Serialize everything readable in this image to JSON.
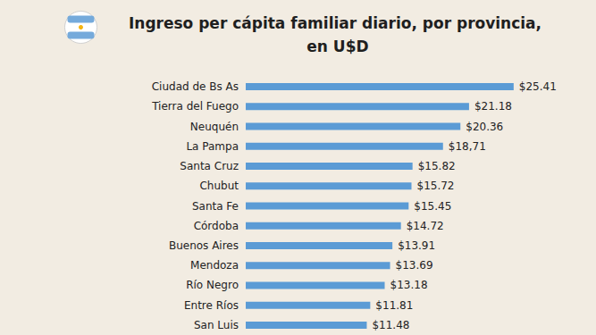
{
  "chart_data": {
    "type": "bar",
    "orientation": "horizontal",
    "title": "Ingreso per cápita familiar diario, por provincia, en U$D",
    "categories": [
      "Ciudad de Bs As",
      "Tierra del Fuego",
      "Neuquén",
      "La Pampa",
      "Santa Cruz",
      "Chubut",
      "Santa Fe",
      "Córdoba",
      "Buenos Aires",
      "Mendoza",
      "Río Negro",
      "Entre Ríos",
      "San Luis"
    ],
    "values": [
      25.41,
      21.18,
      20.36,
      18.71,
      15.82,
      15.72,
      15.45,
      14.72,
      13.91,
      13.69,
      13.18,
      11.81,
      11.48
    ],
    "value_labels": [
      "$25.41",
      "$21.18",
      "$20.36",
      "$18,71",
      "$15.82",
      "$15.72",
      "$15.45",
      "$14.72",
      "$13.91",
      "$13.69",
      "$13.18",
      "$11.81",
      "$11.48"
    ],
    "color": "#5b9bd5",
    "xlim": [
      0,
      30
    ],
    "data_labels": true,
    "tick_labels": "y",
    "grid": false
  }
}
